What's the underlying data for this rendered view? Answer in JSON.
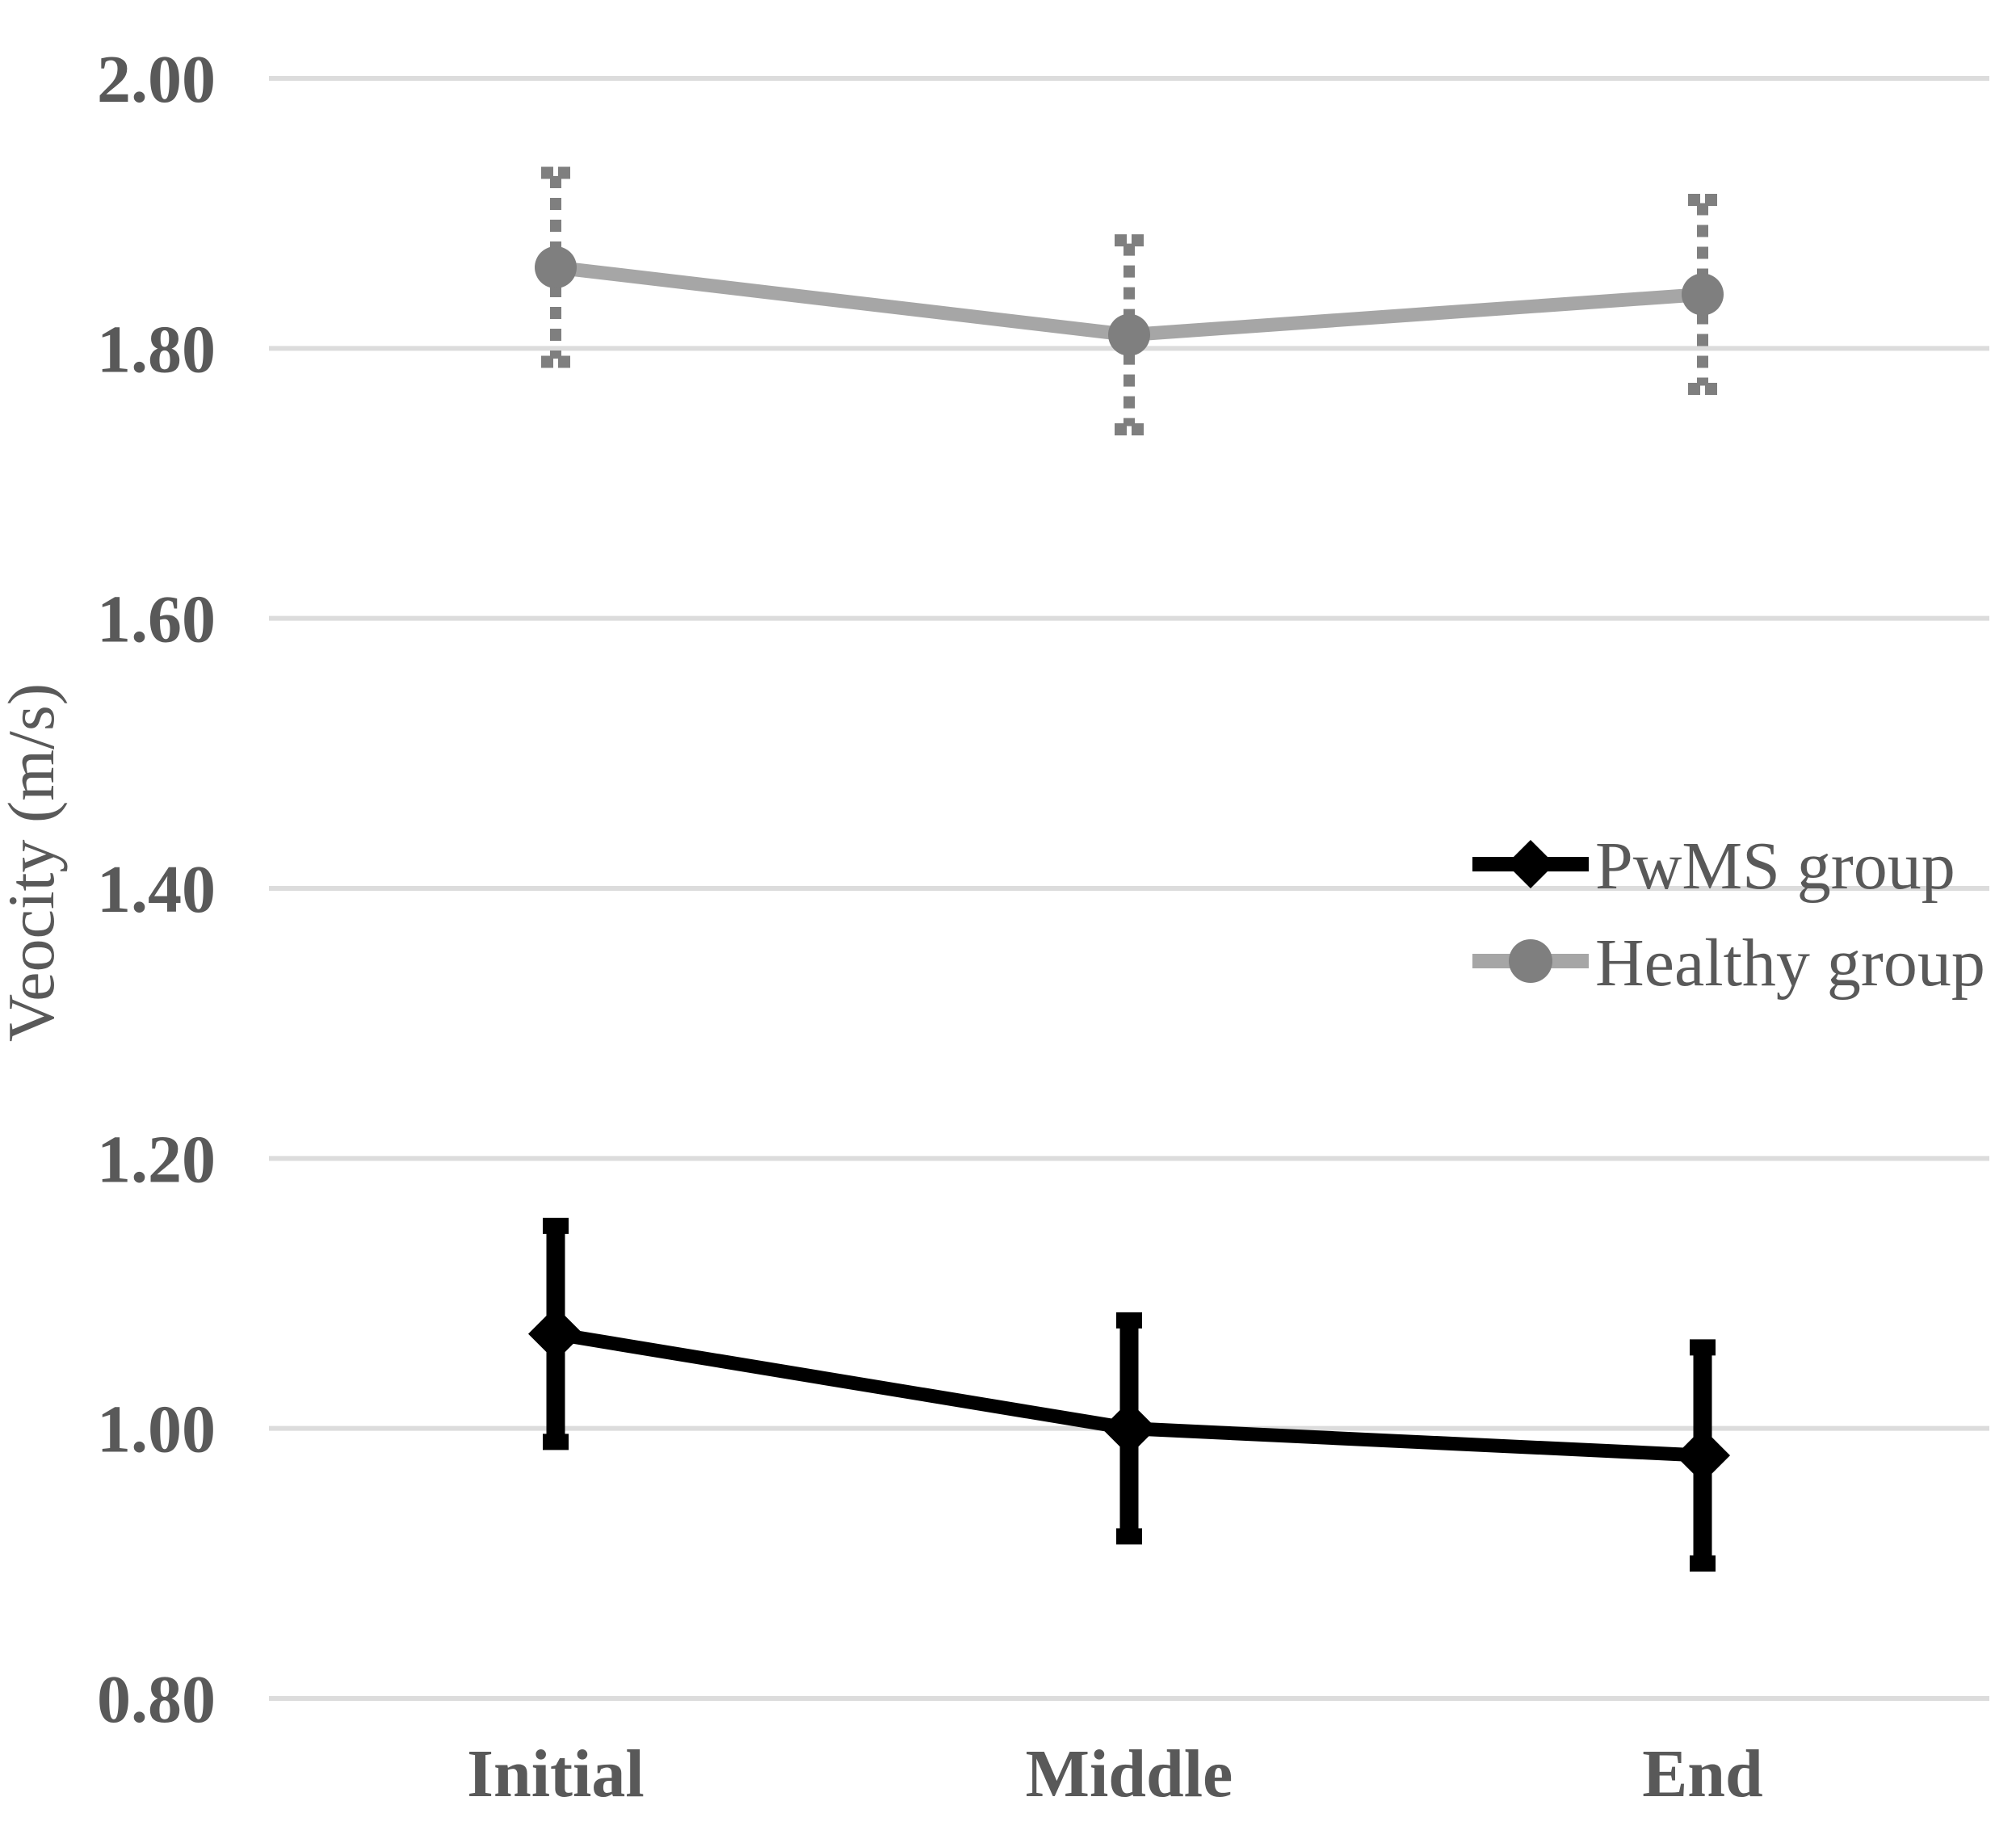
{
  "figure": {
    "background": "#ffffff",
    "text_color": "#595959",
    "gridline_color": "#dcdcdc"
  },
  "chart_data": {
    "type": "line",
    "title": "",
    "xlabel": "",
    "ylabel": "Veocity (m/s)",
    "categories": [
      "Initial",
      "Middle",
      "End"
    ],
    "ylim": [
      0.8,
      2.0
    ],
    "ytick_step": 0.2,
    "grid": "horizontal-only",
    "legend_position": "middle-right",
    "yticks": [
      {
        "label": "2.00",
        "value": 2.0
      },
      {
        "label": "1.80",
        "value": 1.8
      },
      {
        "label": "1.60",
        "value": 1.6
      },
      {
        "label": "1.40",
        "value": 1.4
      },
      {
        "label": "1.20",
        "value": 1.2
      },
      {
        "label": "1.00",
        "value": 1.0
      },
      {
        "label": "0.80",
        "value": 0.8
      }
    ],
    "series": [
      {
        "name": "PwMS group",
        "line_color": "#000000",
        "marker": "diamond",
        "marker_color": "#000000",
        "error_bar_style": "solid",
        "error_bar_color": "#000000",
        "values": [
          1.07,
          1.0,
          0.98
        ],
        "error_plus": [
          0.08,
          0.08,
          0.08
        ],
        "error_minus": [
          0.08,
          0.08,
          0.08
        ]
      },
      {
        "name": "Healthy group",
        "line_color": "#a6a6a6",
        "marker": "circle",
        "marker_color": "#7f7f7f",
        "error_bar_style": "dashed",
        "error_bar_color": "#7f7f7f",
        "values": [
          1.86,
          1.81,
          1.84
        ],
        "error_plus": [
          0.07,
          0.07,
          0.07
        ],
        "error_minus": [
          0.07,
          0.07,
          0.07
        ]
      }
    ]
  }
}
